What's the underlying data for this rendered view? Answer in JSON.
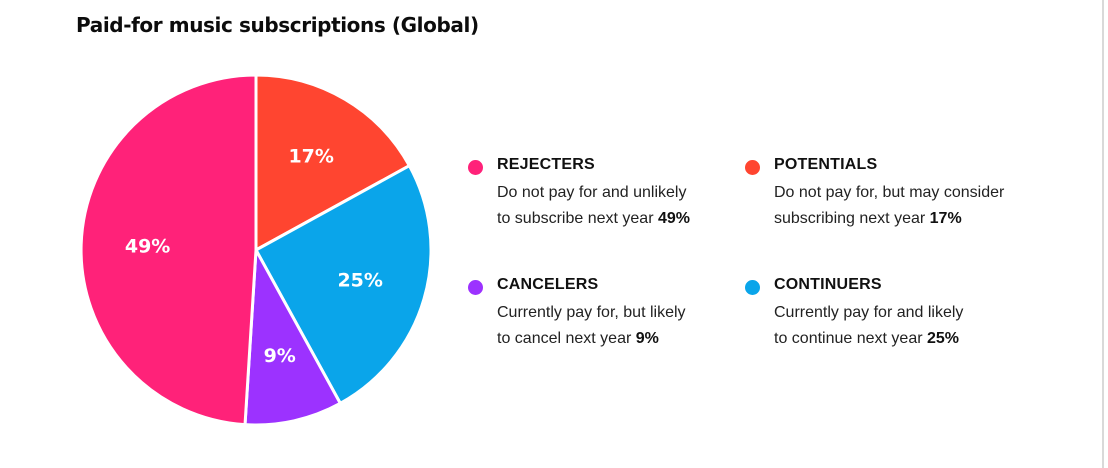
{
  "chart_data": {
    "type": "pie",
    "title": "Paid-for music subscriptions (Global)",
    "slices": [
      {
        "name": "POTENTIALS",
        "value": 17,
        "label": "17%",
        "color": "#ff4530"
      },
      {
        "name": "CONTINUERS",
        "value": 25,
        "label": "25%",
        "color": "#0aa5ea"
      },
      {
        "name": "CANCELERS",
        "value": 9,
        "label": "9%",
        "color": "#9c32ff"
      },
      {
        "name": "REJECTERS",
        "value": 49,
        "label": "49%",
        "color": "#ff2279"
      }
    ],
    "start_direction": "12 o'clock",
    "direction": "clockwise",
    "legend_placement": "right"
  },
  "legend": [
    {
      "title": "REJECTERS",
      "color": "#ff2279",
      "line1": "Do not pay for and unlikely",
      "line2": "to subscribe next year",
      "pct": "49%"
    },
    {
      "title": "POTENTIALS",
      "color": "#ff4530",
      "line1": "Do not pay for, but may consider",
      "line2": "subscribing next year",
      "pct": "17%"
    },
    {
      "title": "CANCELERS",
      "color": "#9c32ff",
      "line1": "Currently pay for, but likely",
      "line2": "to cancel next year",
      "pct": "9%"
    },
    {
      "title": "CONTINUERS",
      "color": "#0aa5ea",
      "line1": "Currently pay for and likely",
      "line2": "to continue next year",
      "pct": "25%"
    }
  ]
}
